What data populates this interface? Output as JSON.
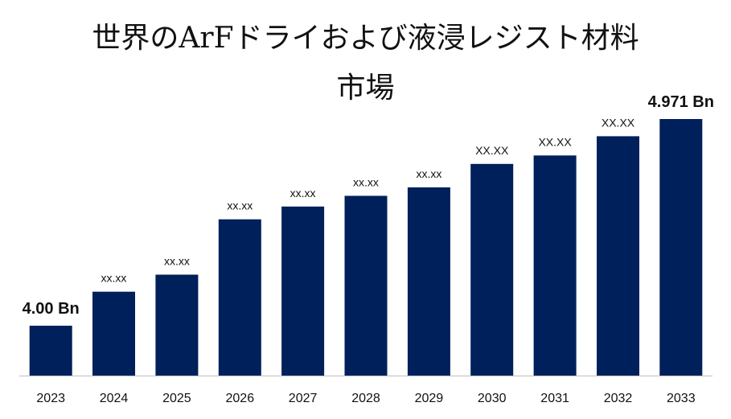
{
  "title_lines": [
    "世界のArFドライおよび液浸レジスト材料",
    "市場"
  ],
  "chart_data": {
    "type": "bar",
    "title": "世界のArFドライおよび液浸レジスト材料 市場",
    "categories": [
      "2023",
      "2024",
      "2025",
      "2026",
      "2027",
      "2028",
      "2029",
      "2030",
      "2031",
      "2032",
      "2033"
    ],
    "values": [
      4.0,
      4.16,
      4.24,
      4.5,
      4.56,
      4.61,
      4.65,
      4.76,
      4.8,
      4.89,
      4.971
    ],
    "data_labels": [
      "4.00 Bn",
      "xx.xx",
      "xx.xx",
      "xx.xx",
      "xx.xx",
      "xx.xx",
      "xx.xx",
      "XX.XX",
      "XX.XX",
      "XX.XX",
      "4.971 Bn"
    ],
    "emphasized_labels": [
      0,
      10
    ],
    "xlabel": "",
    "ylabel": "",
    "grid": false,
    "legend": "none",
    "bar_color": "#00205b"
  }
}
